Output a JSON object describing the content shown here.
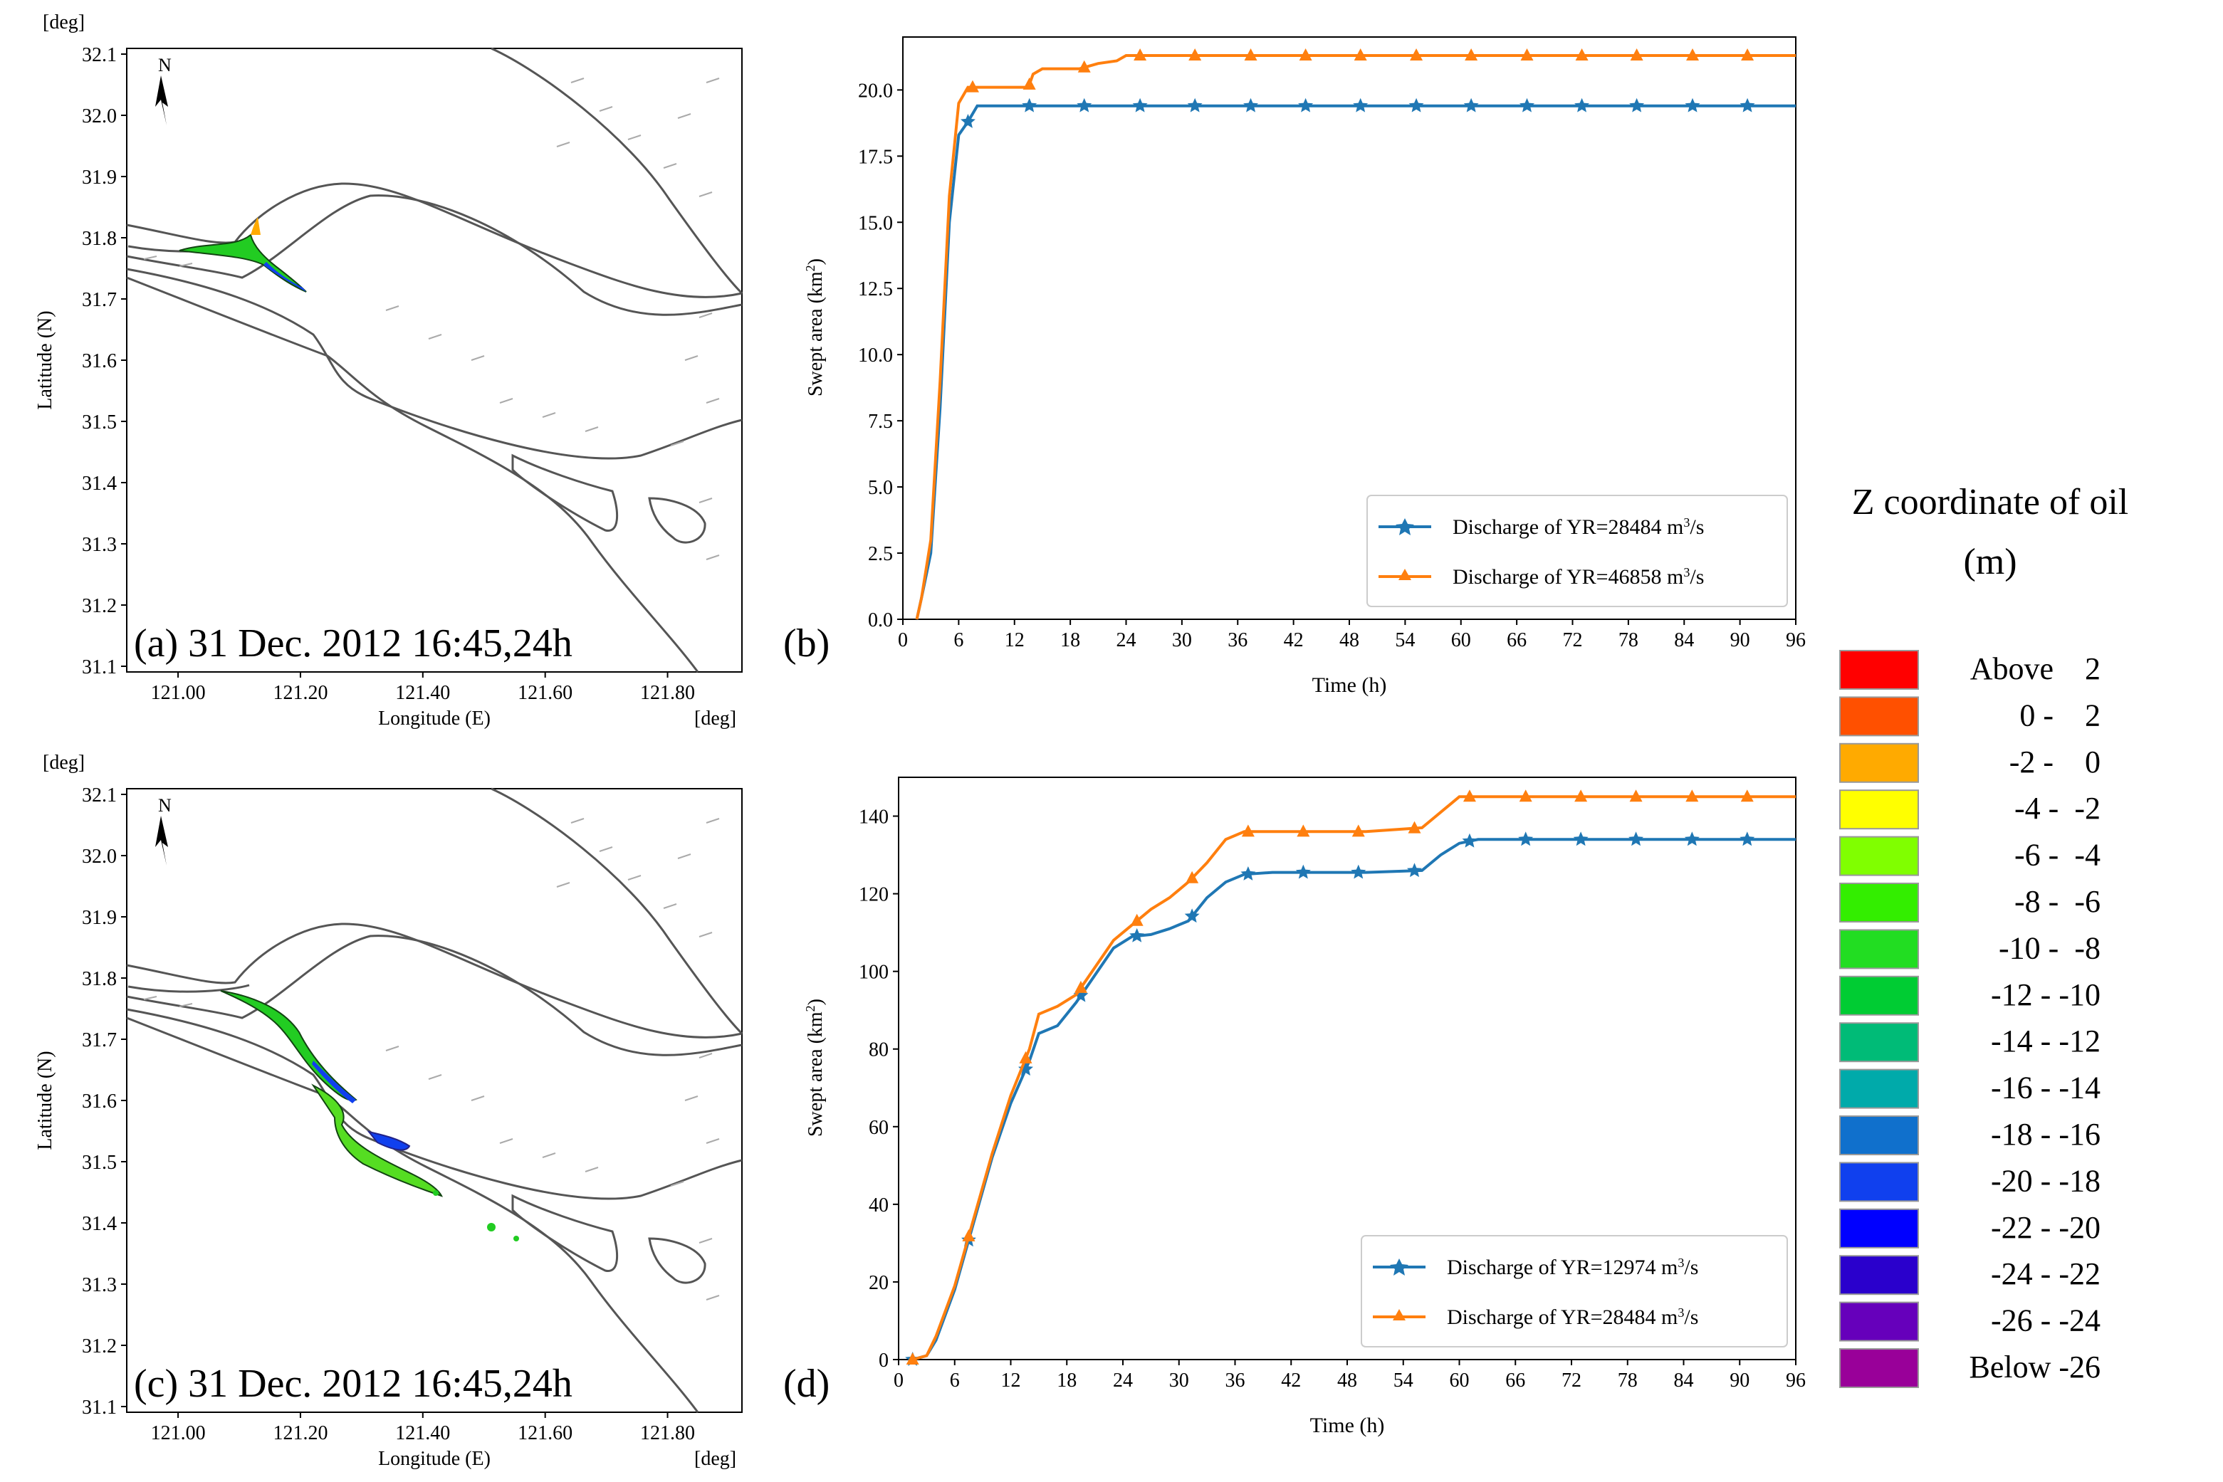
{
  "maps": [
    {
      "id": "a",
      "caption": "(a) 31 Dec. 2012 16:45,24h",
      "unit_top": "[deg]",
      "unit_right": "[deg]",
      "ylabel": "Latitude (N)",
      "xlabel": "Longitude (E)",
      "north": "N",
      "yticks": [
        "32.1",
        "32.0",
        "31.9",
        "31.8",
        "31.7",
        "31.6",
        "31.5",
        "31.4",
        "31.3",
        "31.2",
        "31.1"
      ],
      "xticks": [
        "121.00",
        "121.20",
        "121.40",
        "121.60",
        "121.80"
      ]
    },
    {
      "id": "c",
      "caption": "(c) 31 Dec. 2012 16:45,24h",
      "unit_top": "[deg]",
      "unit_right": "[deg]",
      "ylabel": "Latitude (N)",
      "xlabel": "Longitude (E)",
      "north": "N",
      "yticks": [
        "32.1",
        "32.0",
        "31.9",
        "31.8",
        "31.7",
        "31.6",
        "31.5",
        "31.4",
        "31.3",
        "31.2",
        "31.1"
      ],
      "xticks": [
        "121.00",
        "121.20",
        "121.40",
        "121.60",
        "121.80"
      ]
    }
  ],
  "chart_data": [
    {
      "id": "b",
      "type": "line",
      "panel_label": "(b)",
      "xlabel": "Time (h)",
      "ylabel": "Swept area (km",
      "ylabel_sup": "2",
      "ylabel_end": ")",
      "xlim": [
        0,
        96
      ],
      "ylim": [
        0,
        22
      ],
      "xticks": [
        0,
        6,
        12,
        18,
        24,
        30,
        36,
        42,
        48,
        54,
        60,
        66,
        72,
        78,
        84,
        90,
        96
      ],
      "yticks": [
        "0.0",
        "2.5",
        "5.0",
        "7.5",
        "10.0",
        "12.5",
        "15.0",
        "17.5",
        "20.0"
      ],
      "ytick_values": [
        0,
        2.5,
        5,
        7.5,
        10,
        12.5,
        15,
        17.5,
        20
      ],
      "series": [
        {
          "name": "Discharge of YR=28484 m",
          "name_sup": "3",
          "name_end": "/s",
          "color": "#1f77b4",
          "marker": "star",
          "x": [
            1.5,
            2,
            3,
            4,
            5,
            6,
            7,
            8,
            96
          ],
          "y": [
            0,
            0.8,
            2.5,
            8,
            15,
            18.3,
            18.8,
            19.4,
            19.4
          ],
          "marker_x": [
            7,
            13.6,
            19.5,
            25.5,
            31.4,
            37.4,
            43.3,
            49.2,
            55.2,
            61.1,
            67.1,
            73,
            78.9,
            84.9,
            90.8
          ]
        },
        {
          "name": "Discharge of YR=46858 m",
          "name_sup": "3",
          "name_end": "/s",
          "color": "#ff7f0e",
          "marker": "triangle",
          "x": [
            1.5,
            2,
            3,
            4,
            5,
            6,
            7,
            7.5,
            13.5,
            14,
            15,
            19,
            21,
            23,
            24,
            96
          ],
          "y": [
            0,
            0.8,
            3,
            9,
            16,
            19.5,
            20.1,
            20.1,
            20.1,
            20.6,
            20.8,
            20.8,
            21,
            21.1,
            21.3,
            21.3
          ],
          "marker_x": [
            7.5,
            13.6,
            19.5,
            25.5,
            31.4,
            37.4,
            43.3,
            49.2,
            55.2,
            61.1,
            67.1,
            73,
            78.9,
            84.9,
            90.8
          ]
        }
      ],
      "legend_location": "lower-right"
    },
    {
      "id": "d",
      "type": "line",
      "panel_label": "(d)",
      "xlabel": "Time (h)",
      "ylabel": "Swept area (km",
      "ylabel_sup": "2",
      "ylabel_end": ")",
      "xlim": [
        0,
        96
      ],
      "ylim": [
        0,
        150
      ],
      "xticks": [
        0,
        6,
        12,
        18,
        24,
        30,
        36,
        42,
        48,
        54,
        60,
        66,
        72,
        78,
        84,
        90,
        96
      ],
      "yticks": [
        "0",
        "20",
        "40",
        "60",
        "80",
        "100",
        "120",
        "140"
      ],
      "ytick_values": [
        0,
        20,
        40,
        60,
        80,
        100,
        120,
        140
      ],
      "series": [
        {
          "name": "Discharge of YR=12974 m",
          "name_sup": "3",
          "name_end": "/s",
          "color": "#1f77b4",
          "marker": "star",
          "x": [
            1.5,
            3,
            4,
            6,
            8,
            10,
            12,
            14,
            15,
            17,
            19,
            21,
            23,
            25,
            27,
            29,
            31,
            33,
            35,
            37,
            40,
            50,
            56,
            58,
            60,
            62,
            96
          ],
          "y": [
            0,
            1,
            5,
            18,
            35,
            52,
            66,
            77,
            84,
            86,
            92,
            99,
            106,
            109,
            109.5,
            111,
            113,
            119,
            123,
            125,
            125.5,
            125.5,
            126,
            130,
            133,
            134,
            134
          ],
          "marker_x": [
            1.5,
            7.5,
            13.6,
            19.5,
            25.5,
            31.4,
            37.4,
            43.3,
            49.2,
            55.2,
            61.1,
            67.1,
            73,
            78.9,
            84.9,
            90.8
          ]
        },
        {
          "name": "Discharge of YR=28484 m",
          "name_sup": "3",
          "name_end": "/s",
          "color": "#ff7f0e",
          "marker": "triangle",
          "x": [
            1.5,
            3,
            4,
            6,
            8,
            10,
            12,
            14,
            15,
            17,
            19,
            21,
            23,
            25,
            27,
            29,
            31,
            33,
            35,
            37,
            40,
            50,
            56,
            58,
            60,
            62,
            96
          ],
          "y": [
            0,
            1,
            6,
            19,
            36,
            53,
            68,
            80,
            89,
            91,
            94,
            101,
            108,
            112,
            116,
            119,
            123,
            128,
            134,
            136,
            136,
            136,
            137,
            141,
            145,
            145,
            145
          ],
          "marker_x": [
            1.5,
            7.5,
            13.6,
            19.5,
            25.5,
            31.4,
            37.4,
            43.3,
            49.2,
            55.2,
            61.1,
            67.1,
            73,
            78.9,
            84.9,
            90.8
          ]
        }
      ],
      "legend_location": "lower-right"
    }
  ],
  "colorbar": {
    "title_line1": "Z coordinate of oil",
    "title_line2": "(m)",
    "entries": [
      {
        "label": "Above    2",
        "color": "#ff0000"
      },
      {
        "label": "0 -    2",
        "color": "#ff5000"
      },
      {
        "label": "-2 -    0",
        "color": "#ffaa00"
      },
      {
        "label": "-4 -  -2",
        "color": "#ffff00"
      },
      {
        "label": "-6 -  -4",
        "color": "#80ff00"
      },
      {
        "label": "-8 -  -6",
        "color": "#33ee00"
      },
      {
        "label": "-10 -  -8",
        "color": "#22dd22"
      },
      {
        "label": "-12 - -10",
        "color": "#00cc33"
      },
      {
        "label": "-14 - -12",
        "color": "#00bb77"
      },
      {
        "label": "-16 - -14",
        "color": "#00aaaa"
      },
      {
        "label": "-18 - -16",
        "color": "#1070cc"
      },
      {
        "label": "-20 - -18",
        "color": "#1040ee"
      },
      {
        "label": "-22 - -20",
        "color": "#0000ff"
      },
      {
        "label": "-24 - -22",
        "color": "#2a00cc"
      },
      {
        "label": "-26 - -24",
        "color": "#6600bb"
      },
      {
        "label": "Below -26",
        "color": "#990099"
      }
    ]
  }
}
